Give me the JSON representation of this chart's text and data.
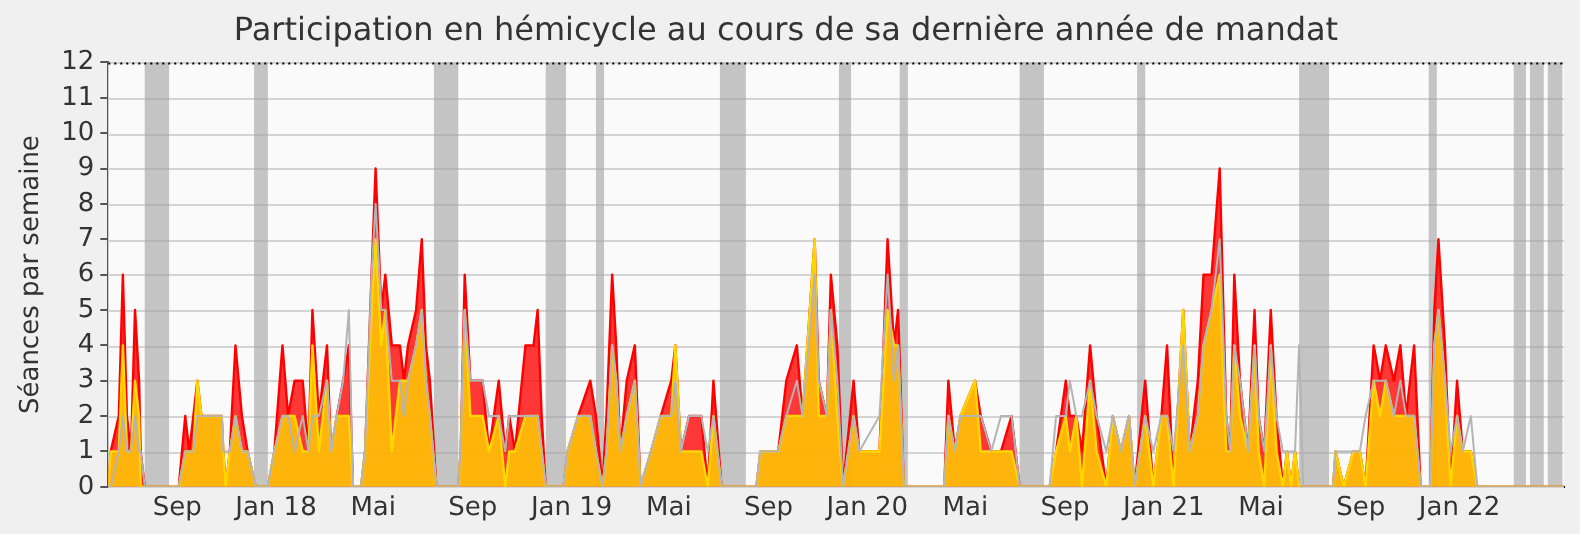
{
  "chart_data": {
    "type": "area",
    "title": "Participation en hémicycle au cours de sa dernière année de mandat",
    "ylabel": "Séances par semaine",
    "x": [
      "2017-06-08",
      "2017-06-11",
      "2017-06-21",
      "2017-06-26",
      "2017-07-01",
      "2017-07-06",
      "2017-07-11",
      "2017-07-16",
      "2017-07-18",
      "2017-07-23",
      "2017-09-03",
      "2017-09-11",
      "2017-09-16",
      "2017-09-21",
      "2017-09-26",
      "2017-10-01",
      "2017-10-26",
      "2017-10-28",
      "2017-10-31",
      "2017-11-05",
      "2017-11-12",
      "2017-11-20",
      "2017-11-27",
      "2017-12-07",
      "2017-12-22",
      "2017-12-30",
      "2018-01-09",
      "2018-01-16",
      "2018-01-24",
      "2018-02-03",
      "2018-02-10",
      "2018-02-15",
      "2018-02-23",
      "2018-03-05",
      "2018-03-10",
      "2018-03-17",
      "2018-03-25",
      "2018-04-01",
      "2018-04-06",
      "2018-04-16",
      "2018-04-21",
      "2018-04-29",
      "2018-05-04",
      "2018-05-11",
      "2018-05-16",
      "2018-05-24",
      "2018-06-03",
      "2018-06-08",
      "2018-06-13",
      "2018-06-23",
      "2018-06-30",
      "2018-07-05",
      "2018-07-10",
      "2018-07-18",
      "2018-08-14",
      "2018-08-17",
      "2018-08-22",
      "2018-08-29",
      "2018-09-13",
      "2018-09-21",
      "2018-10-03",
      "2018-10-11",
      "2018-10-16",
      "2018-10-23",
      "2018-11-05",
      "2018-11-15",
      "2018-11-20",
      "2018-11-25",
      "2018-11-30",
      "2018-12-22",
      "2018-12-27",
      "2019-01-09",
      "2019-01-24",
      "2019-01-31",
      "2019-02-08",
      "2019-02-13",
      "2019-02-20",
      "2019-02-25",
      "2019-03-02",
      "2019-03-10",
      "2019-03-20",
      "2019-03-27",
      "2019-04-09",
      "2019-04-21",
      "2019-05-04",
      "2019-05-09",
      "2019-05-16",
      "2019-05-26",
      "2019-06-10",
      "2019-06-18",
      "2019-06-25",
      "2019-07-05",
      "2019-08-17",
      "2019-08-22",
      "2019-09-13",
      "2019-09-23",
      "2019-10-06",
      "2019-10-13",
      "2019-10-28",
      "2019-11-02",
      "2019-11-12",
      "2019-11-17",
      "2019-11-25",
      "2019-12-02",
      "2019-12-15",
      "2019-12-22",
      "2020-01-16",
      "2020-01-26",
      "2020-02-03",
      "2020-02-08",
      "2020-02-15",
      "2020-04-05",
      "2020-04-10",
      "2020-04-18",
      "2020-04-25",
      "2020-05-13",
      "2020-05-20",
      "2020-06-02",
      "2020-06-14",
      "2020-06-27",
      "2020-07-07",
      "2020-08-13",
      "2020-08-21",
      "2020-09-02",
      "2020-09-07",
      "2020-09-15",
      "2020-09-22",
      "2020-10-02",
      "2020-10-10",
      "2020-10-22",
      "2020-10-30",
      "2020-11-09",
      "2020-11-19",
      "2020-11-26",
      "2020-12-09",
      "2020-12-19",
      "2020-12-29",
      "2021-01-05",
      "2021-01-13",
      "2021-01-25",
      "2021-02-02",
      "2021-02-12",
      "2021-02-19",
      "2021-03-01",
      "2021-03-11",
      "2021-03-19",
      "2021-03-24",
      "2021-03-29",
      "2021-04-05",
      "2021-04-15",
      "2021-04-23",
      "2021-04-28",
      "2021-05-05",
      "2021-05-13",
      "2021-05-20",
      "2021-05-28",
      "2021-06-02",
      "2021-06-07",
      "2021-06-12",
      "2021-06-17",
      "2021-06-22",
      "2021-07-29",
      "2021-08-01",
      "2021-08-11",
      "2021-08-23",
      "2021-08-31",
      "2021-09-07",
      "2021-09-17",
      "2021-09-25",
      "2021-10-02",
      "2021-10-12",
      "2021-10-20",
      "2021-10-27",
      "2021-11-06",
      "2021-11-14",
      "2021-11-26",
      "2021-12-01",
      "2021-12-06",
      "2021-12-14",
      "2021-12-21",
      "2021-12-29",
      "2022-01-05",
      "2022-01-15",
      "2022-01-23",
      "2022-05-10"
    ],
    "series": [
      {
        "type": "line",
        "color": "#b4b4b4",
        "values": [
          0,
          0,
          1,
          2,
          1,
          1,
          2,
          1,
          1,
          0,
          0,
          1,
          1,
          1,
          2,
          2,
          2,
          1,
          1,
          1,
          2,
          1,
          1,
          0,
          0,
          1,
          2,
          2,
          1,
          2,
          1,
          2,
          2,
          3,
          1,
          2,
          3,
          5,
          0,
          0,
          1,
          6,
          8,
          5,
          5,
          3,
          3,
          2,
          3,
          4,
          5,
          3,
          2,
          0,
          0,
          1,
          5,
          3,
          3,
          2,
          2,
          1,
          2,
          2,
          2,
          2,
          2,
          1,
          0,
          0,
          1,
          2,
          2,
          1,
          0,
          1,
          4,
          3,
          1,
          2,
          3,
          0,
          1,
          2,
          2,
          3,
          1,
          2,
          2,
          1,
          2,
          0,
          0,
          1,
          1,
          2,
          3,
          2,
          6,
          3,
          2,
          5,
          3,
          0,
          2,
          1,
          2,
          6,
          3,
          4,
          0,
          0,
          2,
          1,
          2,
          2,
          2,
          1,
          2,
          2,
          0,
          0,
          2,
          2,
          3,
          2,
          2,
          3,
          2,
          1,
          2,
          1,
          2,
          0,
          2,
          1,
          2,
          2,
          1,
          4,
          1,
          2,
          4,
          5,
          7,
          2,
          1,
          4,
          3,
          1,
          4,
          2,
          1,
          4,
          2,
          1,
          1,
          1,
          1,
          4,
          0,
          0,
          1,
          1,
          1,
          1,
          2,
          3,
          3,
          3,
          2,
          3,
          2,
          2,
          0,
          0,
          4,
          5,
          3,
          1,
          2,
          1,
          2,
          0,
          0
        ]
      },
      {
        "color": "#ff0000",
        "values": [
          0,
          1,
          2,
          6,
          2,
          1,
          5,
          3,
          1,
          0,
          0,
          2,
          1,
          2,
          3,
          2,
          2,
          1,
          0,
          1,
          4,
          2,
          1,
          0,
          0,
          1,
          4,
          2,
          3,
          3,
          1,
          5,
          2,
          4,
          1,
          2,
          3,
          4,
          0,
          0,
          1,
          6,
          9,
          5,
          6,
          4,
          4,
          3,
          4,
          5,
          7,
          4,
          3,
          0,
          0,
          1,
          6,
          3,
          3,
          1,
          3,
          1,
          2,
          1,
          4,
          4,
          5,
          2,
          0,
          0,
          1,
          2,
          3,
          2,
          0,
          2,
          6,
          4,
          1,
          3,
          4,
          0,
          1,
          2,
          3,
          4,
          1,
          2,
          2,
          0,
          3,
          0,
          0,
          1,
          1,
          3,
          4,
          2,
          7,
          3,
          2,
          6,
          4,
          0,
          3,
          1,
          1,
          7,
          4,
          5,
          0,
          0,
          3,
          1,
          2,
          3,
          2,
          1,
          1,
          2,
          0,
          0,
          1,
          3,
          2,
          2,
          1,
          4,
          2,
          0,
          2,
          1,
          2,
          0,
          3,
          0,
          2,
          4,
          0,
          5,
          1,
          3,
          6,
          6,
          9,
          2,
          1,
          6,
          3,
          1,
          5,
          2,
          1,
          5,
          2,
          0,
          1,
          0,
          1,
          0,
          0,
          0,
          1,
          0,
          1,
          1,
          0,
          4,
          3,
          4,
          3,
          4,
          2,
          4,
          0,
          0,
          5,
          7,
          4,
          0,
          3,
          1,
          1,
          0,
          0
        ]
      },
      {
        "color": "#ffd700",
        "values": [
          0,
          1,
          1,
          4,
          1,
          1,
          3,
          2,
          0,
          0,
          0,
          1,
          1,
          1,
          3,
          2,
          2,
          1,
          0,
          1,
          2,
          1,
          1,
          0,
          0,
          1,
          2,
          2,
          2,
          1,
          1,
          4,
          1,
          3,
          1,
          2,
          2,
          2,
          0,
          0,
          1,
          5,
          7,
          4,
          5,
          1,
          3,
          3,
          3,
          4,
          5,
          3,
          2,
          0,
          0,
          1,
          5,
          2,
          2,
          1,
          2,
          0,
          1,
          1,
          2,
          2,
          2,
          1,
          0,
          0,
          1,
          2,
          2,
          1,
          0,
          1,
          4,
          3,
          1,
          2,
          3,
          0,
          1,
          2,
          2,
          4,
          1,
          1,
          1,
          0,
          2,
          0,
          0,
          1,
          1,
          2,
          2,
          2,
          7,
          2,
          2,
          5,
          2,
          0,
          2,
          1,
          1,
          5,
          4,
          4,
          0,
          0,
          2,
          1,
          2,
          3,
          1,
          1,
          1,
          1,
          0,
          0,
          1,
          2,
          1,
          2,
          0,
          3,
          1,
          0,
          2,
          1,
          2,
          0,
          2,
          0,
          2,
          2,
          0,
          5,
          1,
          2,
          4,
          5,
          6,
          1,
          1,
          4,
          2,
          1,
          4,
          1,
          0,
          4,
          1,
          0,
          1,
          0,
          1,
          0,
          0,
          0,
          1,
          0,
          1,
          1,
          0,
          3,
          2,
          3,
          2,
          2,
          2,
          2,
          0,
          0,
          4,
          5,
          3,
          0,
          2,
          1,
          1,
          0,
          0
        ]
      }
    ],
    "xlim": [
      "2017-06-08",
      "2022-05-10"
    ],
    "xticks": [
      {
        "value": "2017-09-01",
        "label": "Sep"
      },
      {
        "value": "2018-01-01",
        "label": "Jan 18"
      },
      {
        "value": "2018-05-01",
        "label": "Mai"
      },
      {
        "value": "2018-09-01",
        "label": "Sep"
      },
      {
        "value": "2019-01-01",
        "label": "Jan 19"
      },
      {
        "value": "2019-05-01",
        "label": "Mai"
      },
      {
        "value": "2019-09-01",
        "label": "Sep"
      },
      {
        "value": "2020-01-01",
        "label": "Jan 20"
      },
      {
        "value": "2020-05-01",
        "label": "Mai"
      },
      {
        "value": "2020-09-01",
        "label": "Sep"
      },
      {
        "value": "2021-01-01",
        "label": "Jan 21"
      },
      {
        "value": "2021-05-01",
        "label": "Mai"
      },
      {
        "value": "2021-09-01",
        "label": "Sep"
      },
      {
        "value": "2022-01-01",
        "label": "Jan 22"
      }
    ],
    "ylim": [
      0,
      12
    ],
    "yticks": [
      0,
      1,
      2,
      3,
      4,
      5,
      6,
      7,
      8,
      9,
      10,
      11,
      12
    ],
    "grid": "y",
    "legend": false,
    "bands": [
      {
        "axis": "x",
        "from": "2017-07-23",
        "to": "2017-08-22",
        "color": "#a0a0a0"
      },
      {
        "axis": "x",
        "from": "2017-12-05",
        "to": "2017-12-22",
        "color": "#a0a0a0"
      },
      {
        "axis": "x",
        "from": "2018-07-15",
        "to": "2018-08-14",
        "color": "#a0a0a0"
      },
      {
        "axis": "x",
        "from": "2018-11-30",
        "to": "2018-12-25",
        "color": "#a0a0a0"
      },
      {
        "axis": "x",
        "from": "2019-01-31",
        "to": "2019-02-10",
        "color": "#a0a0a0"
      },
      {
        "axis": "x",
        "from": "2019-07-03",
        "to": "2019-08-04",
        "color": "#a0a0a0"
      },
      {
        "axis": "x",
        "from": "2019-11-27",
        "to": "2019-12-12",
        "color": "#a0a0a0"
      },
      {
        "axis": "x",
        "from": "2020-02-10",
        "to": "2020-02-20",
        "color": "#a0a0a0"
      },
      {
        "axis": "x",
        "from": "2020-07-07",
        "to": "2020-08-06",
        "color": "#a0a0a0"
      },
      {
        "axis": "x",
        "from": "2020-11-29",
        "to": "2020-12-09",
        "color": "#a0a0a0"
      },
      {
        "axis": "x",
        "from": "2021-06-17",
        "to": "2021-07-24",
        "color": "#a0a0a0"
      },
      {
        "axis": "x",
        "from": "2021-11-24",
        "to": "2021-12-04",
        "color": "#a0a0a0"
      },
      {
        "axis": "x",
        "from": "2022-03-09",
        "to": "2022-03-24",
        "color": "#a0a0a0"
      },
      {
        "axis": "x",
        "from": "2022-03-29",
        "to": "2022-04-15",
        "color": "#a0a0a0"
      },
      {
        "axis": "x",
        "from": "2022-04-20",
        "to": "2022-05-08",
        "color": "#a0a0a0"
      }
    ]
  }
}
